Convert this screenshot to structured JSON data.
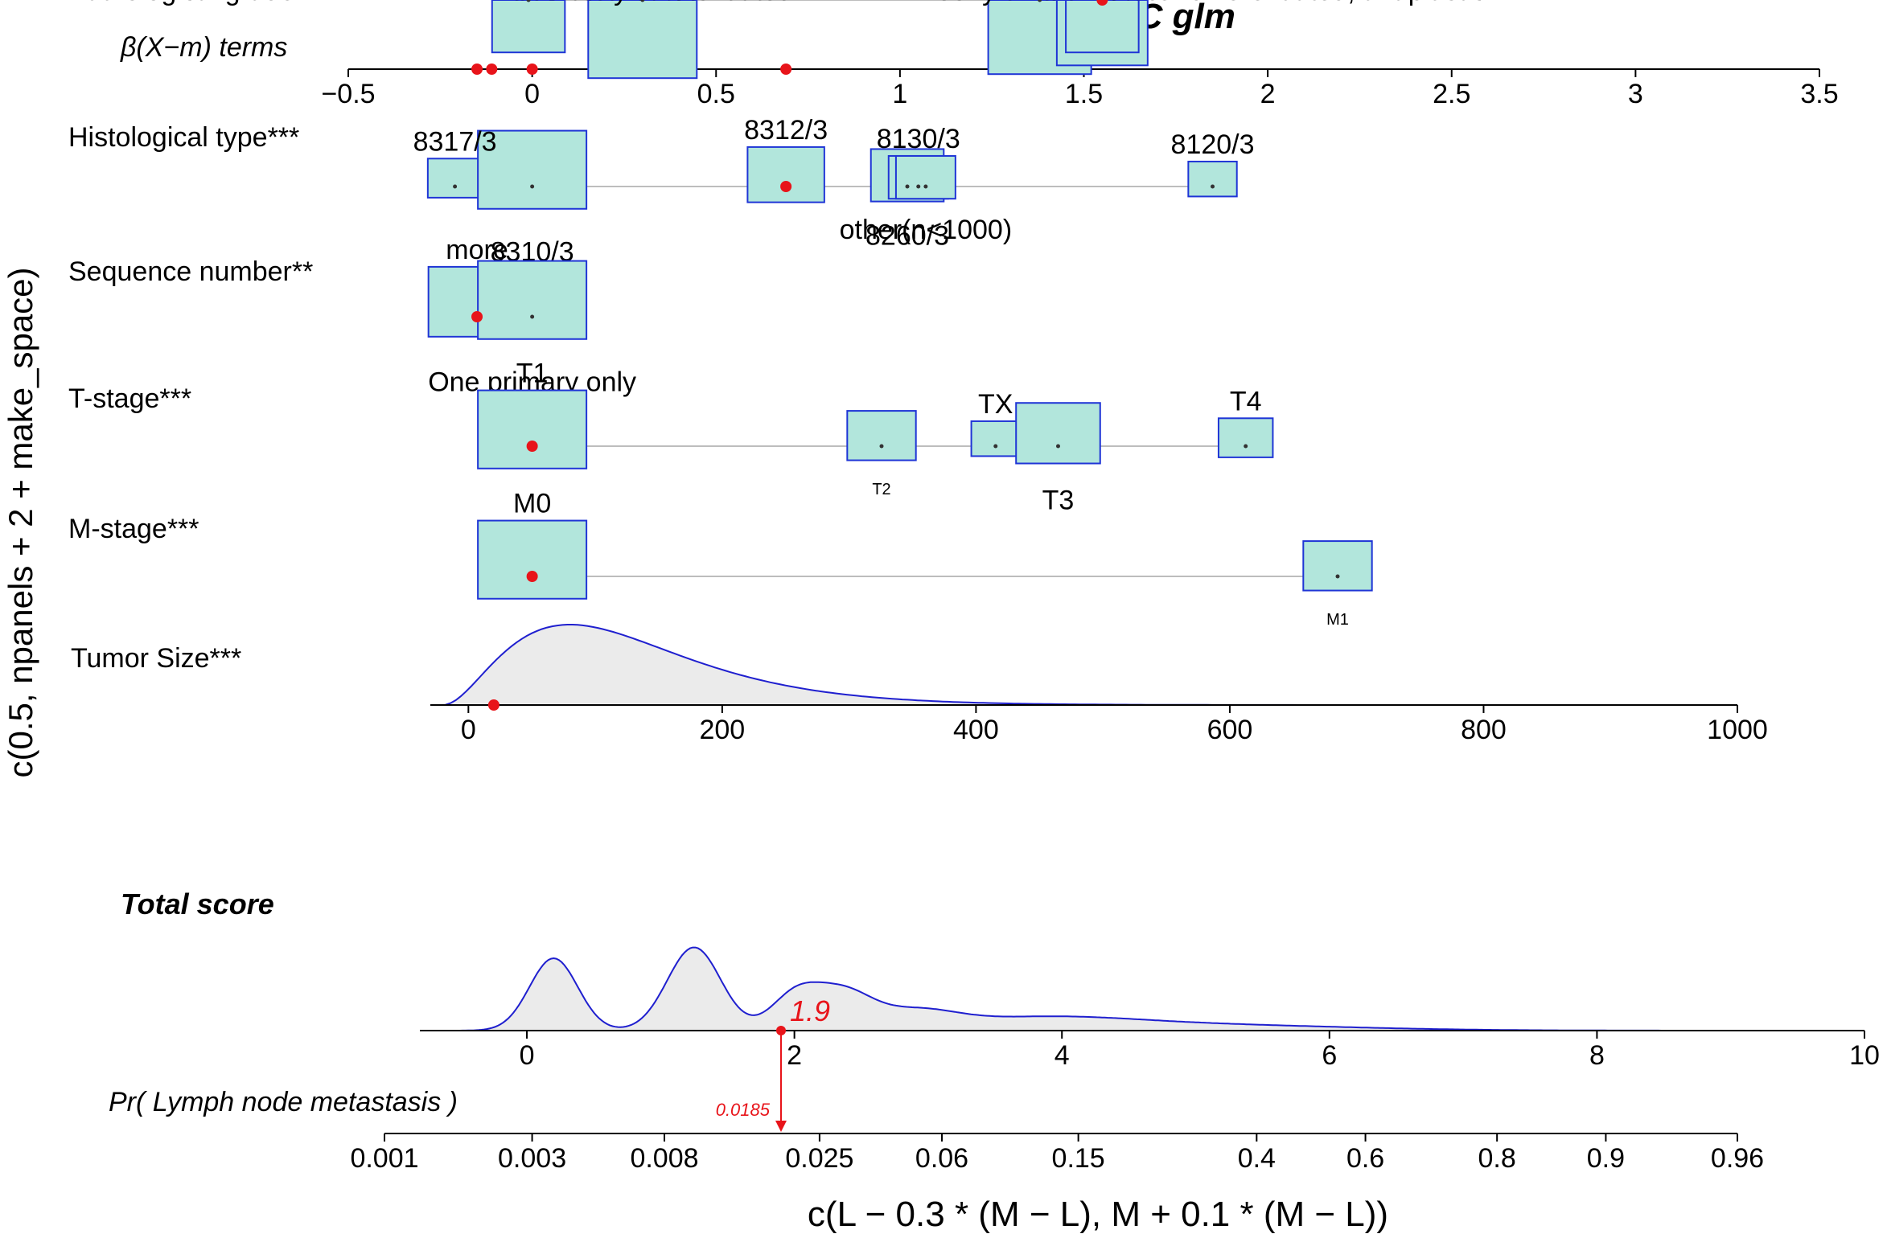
{
  "chart_data": {
    "type": "nomogram",
    "title": "modelC glm",
    "ylabel": "c(0.5, npanels + 2 + make_space)",
    "xlabel": "c(L − 0.3 * (M − L), M + 0.1 * (M − L))",
    "beta_axis": {
      "label": "β(X−m) terms",
      "ticks": [
        -0.5,
        0,
        0.5,
        1,
        1.5,
        2,
        2.5,
        3,
        3.5
      ],
      "tick_labels": [
        "−0.5",
        "0",
        "0.5",
        "1",
        "1.5",
        "2",
        "2.5",
        "3",
        "3.5"
      ],
      "range": [
        -0.5,
        3.5
      ],
      "red_points": [
        -0.15,
        -0.11,
        0.0,
        0.69,
        1.44
      ]
    },
    "variables": [
      {
        "name": "Histological type***",
        "levels": [
          {
            "label": "8317/3",
            "beta": -0.21,
            "weight": 0.25,
            "label_pos": "above",
            "selected": false
          },
          {
            "label": "8310/3",
            "beta": 0.0,
            "weight": 1.0,
            "label_pos": "below",
            "selected": false
          },
          {
            "label": "8312/3",
            "beta": 0.69,
            "weight": 0.5,
            "label_pos": "above",
            "selected": true
          },
          {
            "label": "8260/3",
            "beta": 1.02,
            "weight": 0.45,
            "label_pos": "below",
            "selected": false
          },
          {
            "label": "8130/3",
            "beta": 1.05,
            "weight": 0.3,
            "label_pos": "above",
            "selected": false
          },
          {
            "label": "other(n<1000)",
            "beta": 1.07,
            "weight": 0.3,
            "label_pos": "below",
            "selected": false
          },
          {
            "label": "8120/3",
            "beta": 1.85,
            "weight": 0.2,
            "label_pos": "above",
            "selected": false
          }
        ]
      },
      {
        "name": "Sequence number**",
        "levels": [
          {
            "label": "more",
            "beta": -0.15,
            "weight": 0.8,
            "label_pos": "above",
            "selected": true
          },
          {
            "label": "One primary only",
            "beta": 0.0,
            "weight": 1.0,
            "label_pos": "below",
            "selected": false
          }
        ]
      },
      {
        "name": "T-stage***",
        "levels": [
          {
            "label": "T1",
            "beta": 0.0,
            "weight": 1.0,
            "label_pos": "above",
            "selected": true
          },
          {
            "label": "T2",
            "beta": 0.95,
            "weight": 0.4,
            "label_pos": "below-small",
            "selected": false
          },
          {
            "label": "TX",
            "beta": 1.26,
            "weight": 0.2,
            "label_pos": "above",
            "selected": false
          },
          {
            "label": "T3",
            "beta": 1.43,
            "weight": 0.6,
            "label_pos": "below",
            "selected": false
          },
          {
            "label": "T4",
            "beta": 1.94,
            "weight": 0.25,
            "label_pos": "above",
            "selected": false
          }
        ]
      },
      {
        "name": "M-stage***",
        "levels": [
          {
            "label": "M0",
            "beta": 0.0,
            "weight": 1.0,
            "label_pos": "above",
            "selected": true
          },
          {
            "label": "M1",
            "beta": 2.19,
            "weight": 0.4,
            "label_pos": "below-small",
            "selected": false
          }
        ]
      },
      {
        "name": "Tumor Size***",
        "continuous": true,
        "axis_ticks": [
          0,
          200,
          400,
          600,
          800,
          1000
        ],
        "axis_labels": [
          "0",
          "200",
          "400",
          "600",
          "800",
          "1000"
        ],
        "range": [
          -30,
          1000
        ],
        "density_peak": 30,
        "selected_value": 20
      },
      {
        "name": "Pathological grade***",
        "levels": [
          {
            "label": "Well differentiated",
            "beta": -0.01,
            "weight": 0.45,
            "label_pos": "above-left",
            "selected": false
          },
          {
            "label": "Moderately differentiated",
            "beta": 0.3,
            "weight": 1.0,
            "label_pos": "below",
            "selected": false
          },
          {
            "label": "Poorly differentiated",
            "beta": 1.38,
            "weight": 0.9,
            "label_pos": "above",
            "selected": false
          },
          {
            "label": "unknown",
            "beta": 1.55,
            "weight": 0.7,
            "label_pos": "below",
            "selected": false
          },
          {
            "label": "Undifferentiated; anaplastic",
            "beta": 1.55,
            "weight": 0.45,
            "label_pos": "right",
            "selected": true
          }
        ]
      }
    ],
    "total_score": {
      "label": "Total score",
      "axis_ticks": [
        0,
        2,
        4,
        6,
        8,
        10
      ],
      "axis_labels": [
        "0",
        "2",
        "4",
        "6",
        "8",
        "10"
      ],
      "range": [
        -0.8,
        10
      ],
      "value": 1.9,
      "value_label": "1.9"
    },
    "probability": {
      "label": "Pr( Lymph node metastasis )",
      "ticks": [
        0.001,
        0.003,
        0.008,
        0.025,
        0.06,
        0.15,
        0.4,
        0.6,
        0.8,
        0.9,
        0.96
      ],
      "tick_labels": [
        "0.001",
        "0.003",
        "0.008",
        "0.025",
        "0.06",
        "0.15",
        "0.4",
        "0.6",
        "0.8",
        "0.9",
        "0.96"
      ],
      "value": 0.0185,
      "value_label": "0.0185"
    }
  }
}
